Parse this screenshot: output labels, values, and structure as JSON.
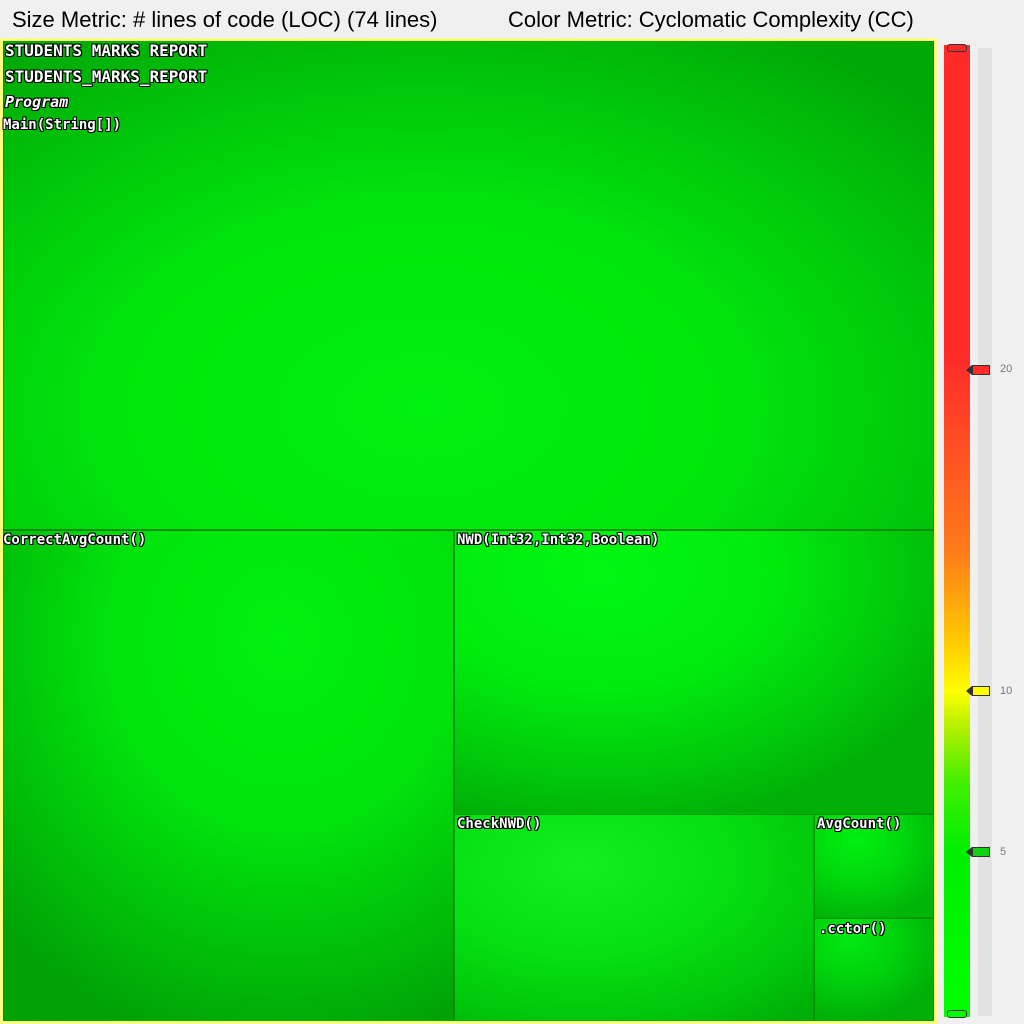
{
  "header": {
    "size_metric": "Size Metric: # lines of code (LOC) (74 lines)",
    "color_metric": "Color Metric: Cyclomatic Complexity (CC)"
  },
  "treemap": {
    "assembly": "STUDENTS MARKS REPORT",
    "namespace": "STUDENTS_MARKS_REPORT",
    "type": "Program",
    "methods": [
      {
        "label": "Main(String[])"
      },
      {
        "label": "CorrectAvgCount()"
      },
      {
        "label": "NWD(Int32,Int32,Boolean)"
      },
      {
        "label": "CheckNWD()"
      },
      {
        "label": "AvgCount()"
      },
      {
        "label": ".cctor()"
      }
    ]
  },
  "scale": {
    "ticks": [
      "20",
      "10",
      "5"
    ],
    "colors": {
      "high": "#ff2a2a",
      "mid": "#ffff00",
      "low": "#00ff00"
    }
  }
}
